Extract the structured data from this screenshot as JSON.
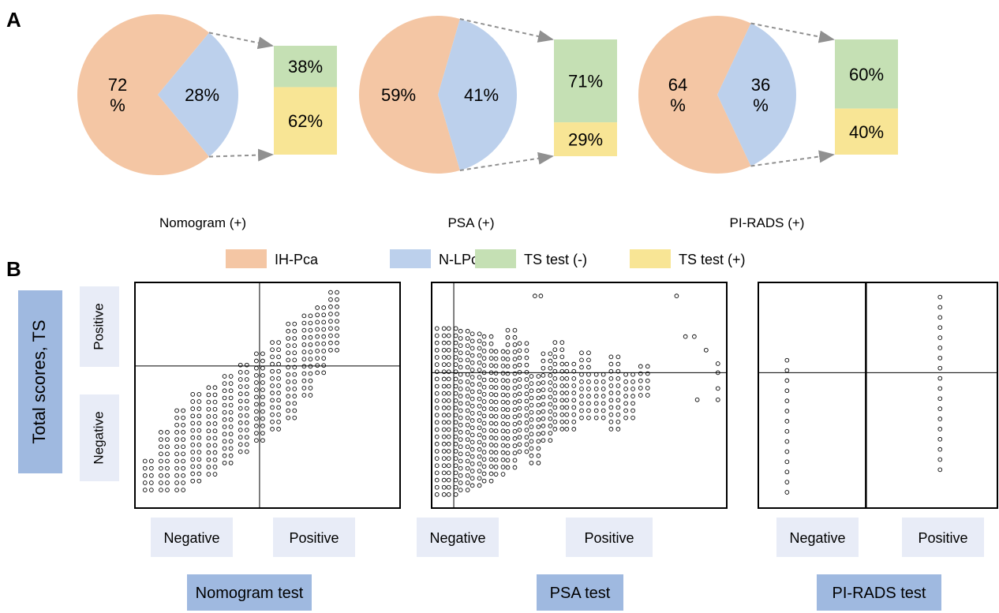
{
  "panel_a_label": "A",
  "panel_b_label": "B",
  "chart_data": [
    {
      "type": "pie",
      "caption": "Nomogram (+)",
      "slices": [
        {
          "label": "IH-Pca",
          "value": 72,
          "text_lines": [
            "72",
            "%"
          ]
        },
        {
          "label": "N-LPca",
          "value": 28,
          "text_lines": [
            "28%"
          ]
        }
      ],
      "breakdown_of": "N-LPca",
      "breakdown": [
        {
          "label": "TS test (-)",
          "value": 38,
          "text": "38%"
        },
        {
          "label": "TS test (+)",
          "value": 62,
          "text": "62%"
        }
      ]
    },
    {
      "type": "pie",
      "caption": "PSA (+)",
      "slices": [
        {
          "label": "IH-Pca",
          "value": 59,
          "text_lines": [
            "59%"
          ]
        },
        {
          "label": "N-LPca",
          "value": 41,
          "text_lines": [
            "41%"
          ]
        }
      ],
      "breakdown_of": "N-LPca",
      "breakdown": [
        {
          "label": "TS test (-)",
          "value": 71,
          "text": "71%"
        },
        {
          "label": "TS test (+)",
          "value": 29,
          "text": "29%"
        }
      ]
    },
    {
      "type": "pie",
      "caption": "PI-RADS (+)",
      "slices": [
        {
          "label": "IH-Pca",
          "value": 64,
          "text_lines": [
            "64",
            "%"
          ]
        },
        {
          "label": "N-LPca",
          "value": 36,
          "text_lines": [
            "36",
            "%"
          ]
        }
      ],
      "breakdown_of": "N-LPca",
      "breakdown": [
        {
          "label": "TS test (-)",
          "value": 60,
          "text": "60%"
        },
        {
          "label": "TS test (+)",
          "value": 40,
          "text": "40%"
        }
      ]
    },
    {
      "type": "scatter",
      "title": "Nomogram test",
      "x_category_labels": [
        "Negative",
        "Positive"
      ],
      "y_category_labels": [
        "Positive",
        "Negative"
      ],
      "xlim": [
        0,
        10
      ],
      "ylim": [
        0,
        10
      ],
      "x_threshold": 4.7,
      "y_threshold": 6.3,
      "columns": [
        {
          "x": 0.5,
          "y_min": 0.8,
          "y_max": 2.2
        },
        {
          "x": 1.1,
          "y_min": 0.8,
          "y_max": 3.5
        },
        {
          "x": 1.7,
          "y_min": 0.8,
          "y_max": 4.5
        },
        {
          "x": 2.3,
          "y_min": 1.2,
          "y_max": 5.2
        },
        {
          "x": 2.9,
          "y_min": 1.5,
          "y_max": 5.6
        },
        {
          "x": 3.5,
          "y_min": 2.0,
          "y_max": 6.0
        },
        {
          "x": 4.1,
          "y_min": 2.5,
          "y_max": 6.4
        },
        {
          "x": 4.7,
          "y_min": 3.0,
          "y_max": 7.0
        },
        {
          "x": 5.3,
          "y_min": 3.5,
          "y_max": 7.6
        },
        {
          "x": 5.9,
          "y_min": 4.0,
          "y_max": 8.2
        },
        {
          "x": 6.5,
          "y_min": 5.0,
          "y_max": 8.8
        },
        {
          "x": 7.0,
          "y_min": 6.0,
          "y_max": 9.0
        },
        {
          "x": 7.5,
          "y_min": 7.0,
          "y_max": 9.6
        }
      ]
    },
    {
      "type": "scatter",
      "title": "PSA test",
      "x_category_labels": [
        "Negative",
        "Positive"
      ],
      "xlim": [
        0,
        10
      ],
      "ylim": [
        0,
        10
      ],
      "x_threshold": 0.75,
      "y_threshold": 6.0,
      "columns": [
        {
          "x": 0.3,
          "y_min": 0.6,
          "y_max": 8.2
        },
        {
          "x": 0.7,
          "y_min": 0.6,
          "y_max": 8.2
        },
        {
          "x": 1.1,
          "y_min": 0.8,
          "y_max": 8.0
        },
        {
          "x": 1.5,
          "y_min": 1.0,
          "y_max": 8.0
        },
        {
          "x": 1.9,
          "y_min": 1.2,
          "y_max": 7.6
        },
        {
          "x": 2.3,
          "y_min": 1.5,
          "y_max": 7.2
        },
        {
          "x": 2.7,
          "y_min": 1.8,
          "y_max": 8.0
        },
        {
          "x": 3.1,
          "y_min": 2.5,
          "y_max": 7.4
        },
        {
          "x": 3.5,
          "y_min": 2.0,
          "y_max": 6.0
        },
        {
          "x": 3.9,
          "y_min": 3.0,
          "y_max": 7.0
        },
        {
          "x": 4.3,
          "y_min": 3.5,
          "y_max": 7.6
        },
        {
          "x": 4.7,
          "y_min": 3.5,
          "y_max": 6.4
        },
        {
          "x": 5.2,
          "y_min": 4.0,
          "y_max": 7.0
        },
        {
          "x": 5.7,
          "y_min": 4.0,
          "y_max": 6.0
        },
        {
          "x": 6.2,
          "y_min": 3.5,
          "y_max": 7.0
        },
        {
          "x": 6.7,
          "y_min": 4.0,
          "y_max": 6.0
        },
        {
          "x": 7.2,
          "y_min": 5.0,
          "y_max": 6.4
        }
      ],
      "extra_points": [
        [
          3.5,
          9.4
        ],
        [
          3.7,
          9.4
        ],
        [
          8.3,
          9.4
        ],
        [
          8.6,
          7.6
        ],
        [
          8.9,
          7.6
        ],
        [
          9.3,
          7.0
        ],
        [
          9.7,
          6.4
        ],
        [
          9.7,
          6.0
        ],
        [
          9.7,
          5.3
        ],
        [
          9.7,
          4.8
        ],
        [
          9.0,
          4.8
        ]
      ]
    },
    {
      "type": "scatter",
      "title": "PI-RADS test",
      "x_category_labels": [
        "Negative",
        "Positive"
      ],
      "xlim": [
        0,
        10
      ],
      "ylim": [
        0,
        10
      ],
      "x_threshold": 4.5,
      "y_threshold": 6.0,
      "columns": [
        {
          "x": 1.2,
          "y_min": 0.7,
          "y_max": 6.6,
          "step": 0.45
        },
        {
          "x": 7.6,
          "y_min": 1.7,
          "y_max": 9.4,
          "step": 0.45
        }
      ]
    }
  ],
  "legend": [
    {
      "label": "IH-Pca",
      "color": "#f4c6a4"
    },
    {
      "label": "N-LPca",
      "color": "#bcd0ec"
    },
    {
      "label": "TS test (-)",
      "color": "#c5e0b4"
    },
    {
      "label": "TS test (+)",
      "color": "#f8e595"
    }
  ],
  "y_axis_title": "Total scores, TS",
  "colors": {
    "ih_pca": "#f4c6a4",
    "n_lpca": "#bcd0ec",
    "ts_neg": "#c5e0b4",
    "ts_pos": "#f8e595",
    "label_box_light": "#e8ecf7",
    "label_box_dark": "#9fb9e0",
    "arrow": "#909090"
  }
}
